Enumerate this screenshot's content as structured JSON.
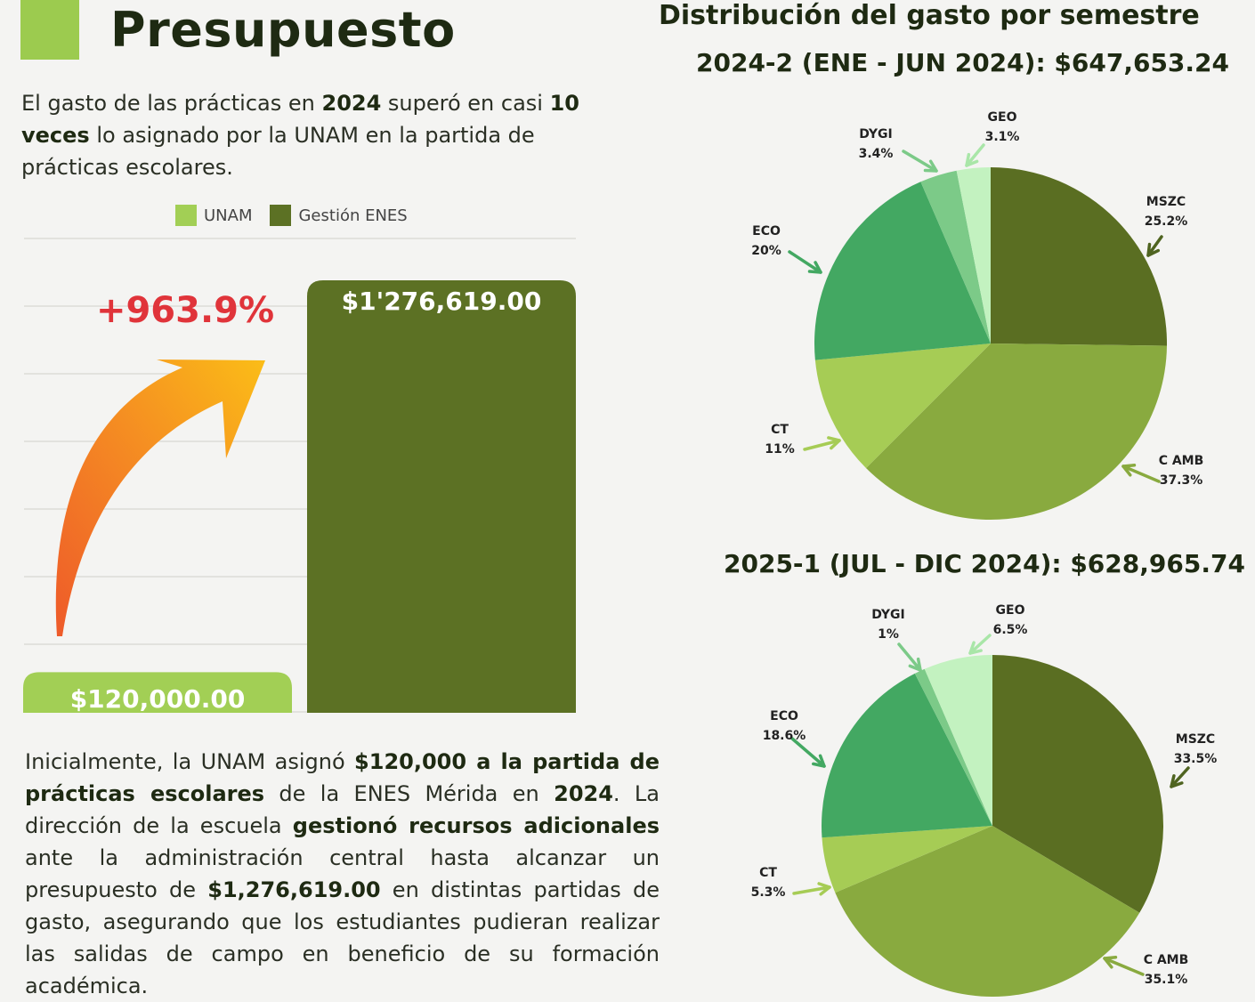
{
  "title": "Presupuesto",
  "intro": {
    "p1": "El gasto de las prácticas en ",
    "b1": "2024",
    "p2": " superó en casi ",
    "b2": "10 veces",
    "p3": " lo asignado por la UNAM en la partida de prácticas escolares."
  },
  "colors": {
    "unam": "#a2cf55",
    "enes": "#5c7124",
    "increase_text": "#e0343a",
    "pie": {
      "MSZC": "#5a6e22",
      "C AMB": "#89aa3f",
      "CT": "#a6cc55",
      "ECO": "#43a862",
      "DYGI": "#7cca88",
      "GEO": "#c3f2c0"
    }
  },
  "chart_data": [
    {
      "type": "bar",
      "categories": [
        "UNAM",
        "Gestión ENES"
      ],
      "values": [
        120000,
        1276619
      ],
      "data_labels": [
        "$120,000.00",
        "$1'276,619.00"
      ],
      "annotation": "+963.9%",
      "legend": [
        "UNAM",
        "Gestión ENES"
      ],
      "legend_position": "top",
      "grid": true
    },
    {
      "type": "pie",
      "title": "2024-2 (ENE - JUN 2024): $647,653.24",
      "slices": [
        {
          "label": "MSZC",
          "value": 25.2,
          "display": "25.2%"
        },
        {
          "label": "C AMB",
          "value": 37.3,
          "display": "37.3%"
        },
        {
          "label": "CT",
          "value": 11,
          "display": "11%"
        },
        {
          "label": "ECO",
          "value": 20,
          "display": "20%"
        },
        {
          "label": "DYGI",
          "value": 3.4,
          "display": "3.4%"
        },
        {
          "label": "GEO",
          "value": 3.1,
          "display": "3.1%"
        }
      ]
    },
    {
      "type": "pie",
      "title": "2025-1 (JUL - DIC 2024): $628,965.74",
      "slices": [
        {
          "label": "MSZC",
          "value": 33.5,
          "display": "33.5%"
        },
        {
          "label": "C AMB",
          "value": 35.1,
          "display": "35.1%"
        },
        {
          "label": "CT",
          "value": 5.3,
          "display": "5.3%"
        },
        {
          "label": "ECO",
          "value": 18.6,
          "display": "18.6%"
        },
        {
          "label": "DYGI",
          "value": 1,
          "display": "1%"
        },
        {
          "label": "GEO",
          "value": 6.5,
          "display": "6.5%"
        }
      ]
    }
  ],
  "right_title": "Distribución del gasto por semestre",
  "bottom": {
    "t1": "Inicialmente, la UNAM asignó ",
    "b1": "$120,000 a la partida de prácticas escolares",
    "t2": " de la ENES Mérida en ",
    "b2": "2024",
    "t3": ". La dirección de la escuela ",
    "b3": "gestionó recursos adicionales",
    "t4": " ante la administración central hasta alcanzar un presupuesto de ",
    "b4": "$1,276,619.00",
    "t5": " en distintas partidas de gasto, asegurando que los estudiantes pudieran realizar las salidas de campo en beneficio de su formación académica."
  }
}
